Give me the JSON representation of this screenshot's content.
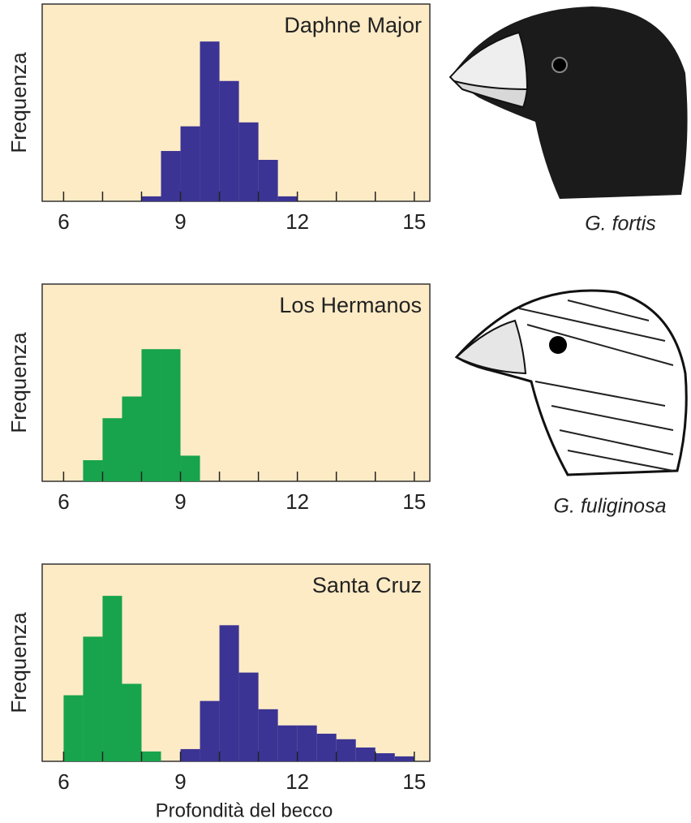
{
  "chart_data": [
    {
      "type": "histogram",
      "title": "Daphne Major",
      "ylabel": "Frequenza",
      "caption": "G. fortis",
      "xlim": [
        5.45,
        15.4
      ],
      "ylim": [
        0,
        100
      ],
      "xticks": [
        6,
        9,
        12,
        15
      ],
      "minor_xticks": [
        7,
        8,
        10,
        11,
        13,
        14
      ],
      "series": [
        {
          "color": "#3b3494",
          "bins": [
            8,
            8.5,
            9,
            9.5,
            10,
            10.5,
            11,
            11.5,
            12
          ],
          "values": [
            2.5,
            25.5,
            38,
            81,
            61,
            40,
            21,
            2.5
          ]
        }
      ]
    },
    {
      "type": "histogram",
      "title": "Los Hermanos",
      "ylabel": "Frequenza",
      "caption": "G. fuliginosa",
      "xlim": [
        5.45,
        15.4
      ],
      "ylim": [
        0,
        100
      ],
      "xticks": [
        6,
        9,
        12,
        15
      ],
      "minor_xticks": [
        7,
        8,
        10,
        11,
        13,
        14
      ],
      "series": [
        {
          "color": "#17a44c",
          "bins": [
            6.5,
            7,
            7.5,
            8,
            8.5,
            9,
            9.5
          ],
          "values": [
            10.7,
            32,
            43,
            67,
            67,
            13
          ]
        }
      ]
    },
    {
      "type": "histogram",
      "title": "Santa Cruz",
      "ylabel": "Frequenza",
      "xlabel": "Profondità del becco",
      "xlim": [
        5.45,
        15.4
      ],
      "ylim": [
        0,
        100
      ],
      "xticks": [
        6,
        9,
        12,
        15
      ],
      "minor_xticks": [
        7,
        8,
        10,
        11,
        13,
        14
      ],
      "series": [
        {
          "color": "#17a44c",
          "bins": [
            6,
            6.5,
            7,
            7.5,
            8,
            8.5
          ],
          "values": [
            33.5,
            63.2,
            83.9,
            39.3,
            5
          ]
        },
        {
          "color": "#3b3494",
          "bins": [
            9,
            9.5,
            10,
            10.5,
            11,
            11.5,
            12,
            12.5,
            13,
            13.5,
            14,
            14.5,
            15
          ],
          "values": [
            6.2,
            30.6,
            69,
            45,
            26.4,
            18.2,
            18.2,
            14,
            11.2,
            7,
            4.1,
            2.5
          ]
        }
      ]
    }
  ]
}
